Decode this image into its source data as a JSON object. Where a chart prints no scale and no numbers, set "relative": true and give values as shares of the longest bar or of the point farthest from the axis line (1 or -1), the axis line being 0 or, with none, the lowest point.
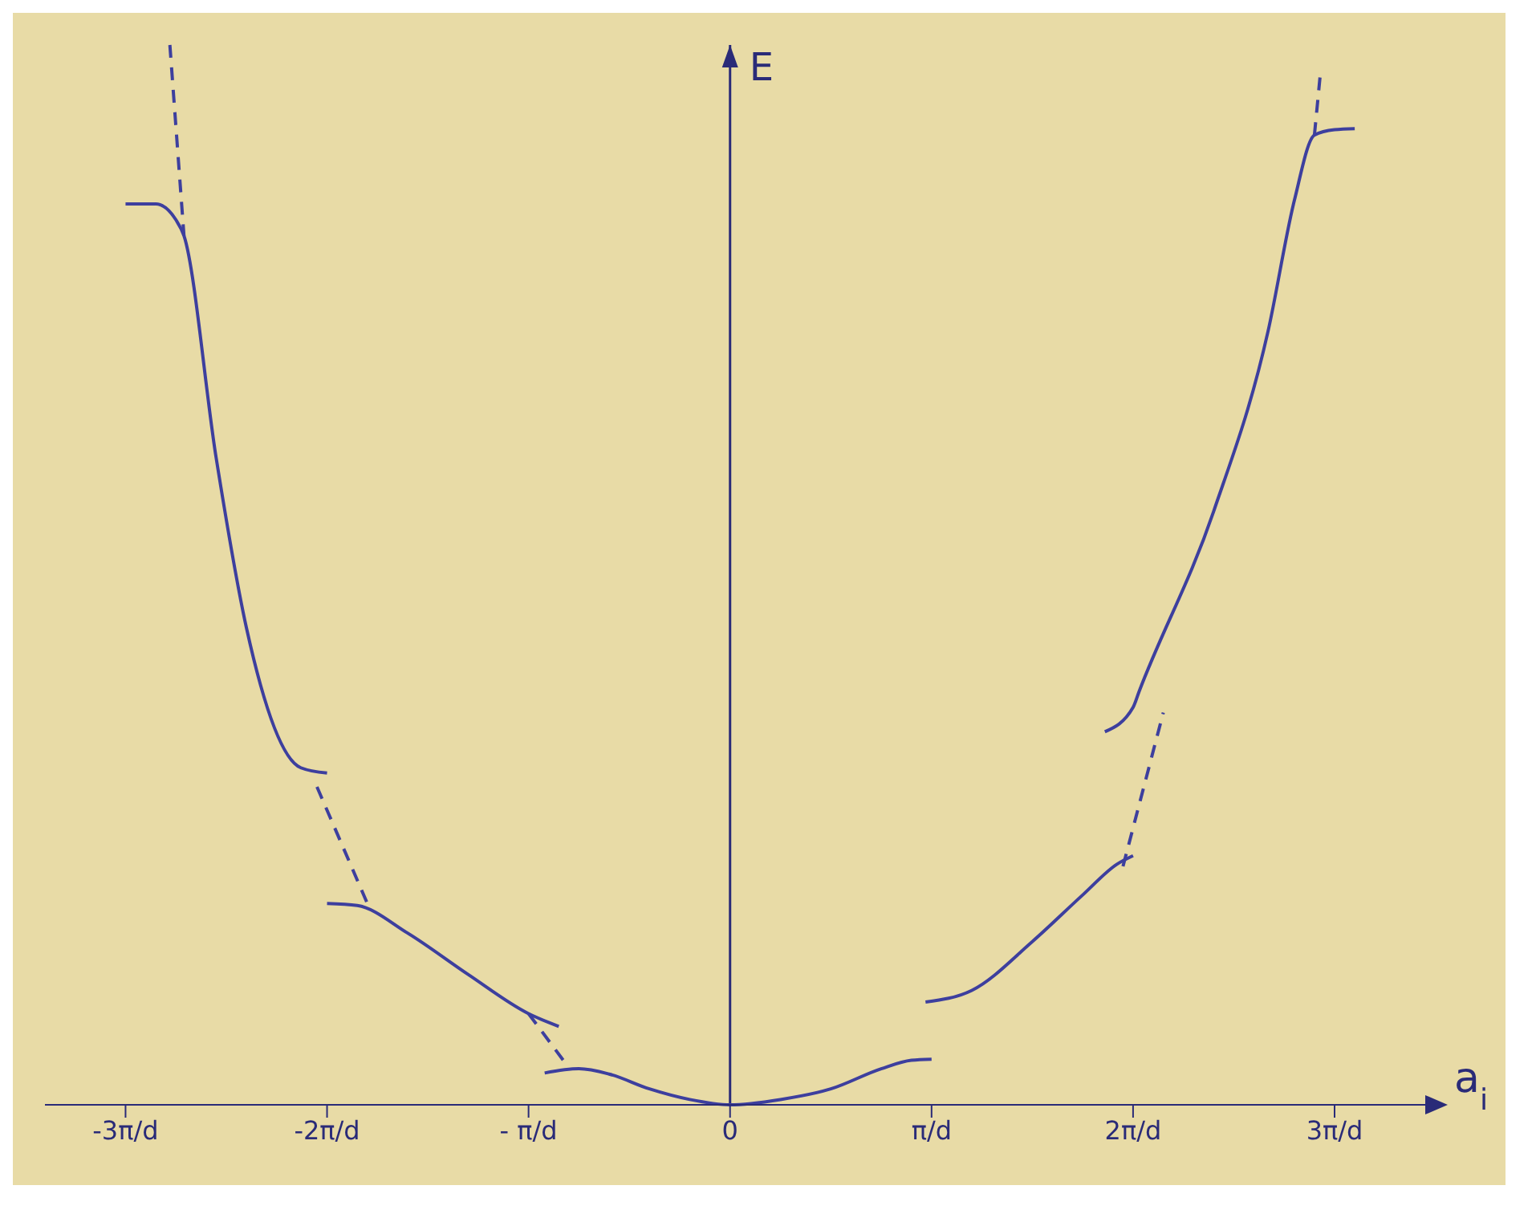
{
  "chart_data": {
    "type": "line",
    "relative": true,
    "xlabel": "a$_{i}$",
    "ylabel": "E",
    "xlim": [
      -3.4,
      3.45
    ],
    "xticks": [
      {
        "value": -3,
        "label": "-3π/d"
      },
      {
        "value": -2,
        "label": "-2π/d"
      },
      {
        "value": -1,
        "label": "- π/d"
      },
      0,
      {
        "value": 1,
        "label": "π/d"
      },
      {
        "value": 2,
        "label": "2π/d"
      },
      {
        "value": 3,
        "label": "3π/d"
      }
    ],
    "ref_lines": [
      {
        "axis": "x",
        "value": 0
      }
    ],
    "grid": false,
    "marker": "none",
    "series": [
      {
        "color": "#3d3f9e",
        "line_style": "solid",
        "x": [
          -0.92,
          -0.75,
          -0.6,
          -0.4,
          -0.2,
          0,
          0.25,
          0.5,
          0.75,
          0.9,
          1
        ],
        "values": [
          0.03,
          0.034,
          0.029,
          0.015,
          0.005,
          0,
          0.005,
          0.015,
          0.034,
          0.042,
          0.043
        ]
      },
      {
        "color": "#3d3f9e",
        "line_style": "solid",
        "x": [
          -2.0,
          -1.85,
          -1.6,
          -1.3,
          -1.0,
          -0.85
        ],
        "values": [
          0.19,
          0.188,
          0.162,
          0.123,
          0.086,
          0.074
        ]
      },
      {
        "color": "#3d3f9e",
        "line_style": "solid",
        "x": [
          -3.0,
          -2.85,
          -2.75,
          -2.71,
          -2.55,
          -2.4,
          -2.13,
          -2.0
        ],
        "values": [
          0.85,
          0.85,
          0.835,
          0.82,
          0.61,
          0.45,
          0.318,
          0.313
        ]
      },
      {
        "color": "#3d3f9e",
        "line_style": "solid",
        "x": [
          0.97,
          1.2,
          1.5,
          1.75,
          1.92,
          2.0
        ],
        "values": [
          0.097,
          0.108,
          0.154,
          0.198,
          0.227,
          0.235
        ]
      },
      {
        "color": "#3d3f9e",
        "line_style": "solid",
        "x": [
          1.86,
          2.0,
          2.03,
          2.4,
          2.67,
          2.8,
          2.9,
          3.0,
          3.1
        ],
        "values": [
          0.352,
          0.375,
          0.39,
          0.56,
          0.73,
          0.853,
          0.915,
          0.92,
          0.921
        ]
      },
      {
        "color": "#3d3f9e",
        "line_style": "dashed",
        "x": [
          -2.78,
          -2.71,
          null,
          -2.05,
          -1.8,
          null,
          -1.0,
          -0.8,
          null,
          1.95,
          2.15,
          null,
          2.9,
          2.93
        ],
        "values": [
          1.0,
          0.82,
          null,
          0.3,
          0.19,
          null,
          0.086,
          0.035,
          null,
          0.225,
          0.37,
          null,
          0.915,
          0.974
        ]
      }
    ]
  }
}
